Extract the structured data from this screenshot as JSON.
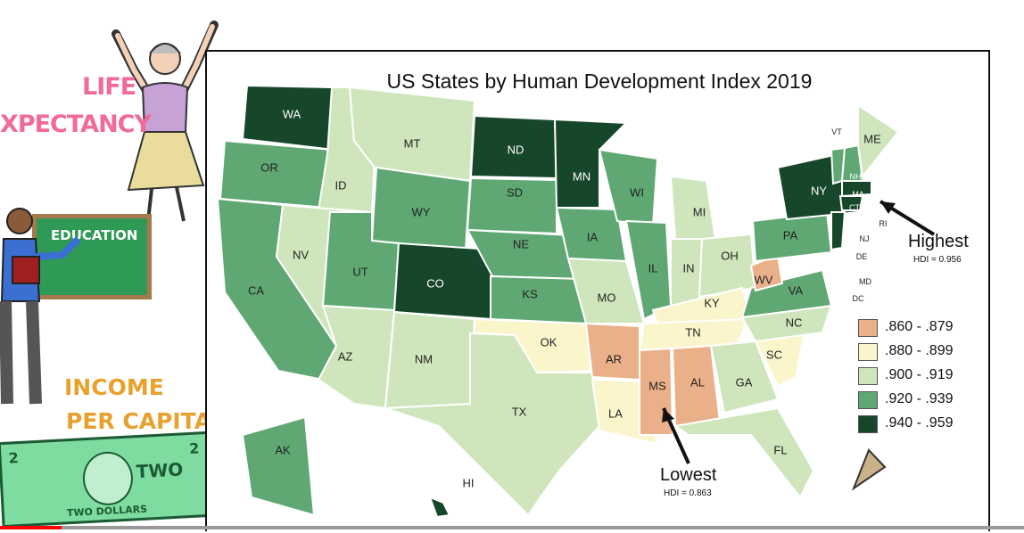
{
  "sidebar": {
    "life_line1": "LIFE",
    "life_line2": "XPECTANCY",
    "education": "EDUCATION",
    "income_line1": "INCOME",
    "income_line2": "PER CAPITA",
    "bill_two": "TWO",
    "bill_dollars": "TWO DOLLARS",
    "bill_corner": "2"
  },
  "map": {
    "title": "US States by Human Development Index 2019",
    "states": {
      "WA": "WA",
      "OR": "OR",
      "CA": "CA",
      "ID": "ID",
      "NV": "NV",
      "MT": "MT",
      "WY": "WY",
      "UT": "UT",
      "AZ": "AZ",
      "CO": "CO",
      "NM": "NM",
      "ND": "ND",
      "SD": "SD",
      "NE": "NE",
      "KS": "KS",
      "OK": "OK",
      "TX": "TX",
      "MN": "MN",
      "IA": "IA",
      "MO": "MO",
      "AR": "AR",
      "LA": "LA",
      "WI": "WI",
      "IL": "IL",
      "MI": "MI",
      "IN": "IN",
      "OH": "OH",
      "KY": "KY",
      "TN": "TN",
      "MS": "MS",
      "AL": "AL",
      "GA": "GA",
      "FL": "FL",
      "SC": "SC",
      "NC": "NC",
      "VA": "VA",
      "WV": "WV",
      "PA": "PA",
      "NY": "NY",
      "VT": "VT",
      "NH": "NH",
      "ME": "ME",
      "MA": "MA",
      "CT": "CT",
      "RI": "RI",
      "NJ": "NJ",
      "DE": "DE",
      "MD": "MD",
      "DC": "DC",
      "AK": "AK",
      "HI": "HI"
    },
    "legend": [
      {
        "label": ".860 - .879",
        "color": "#eab089"
      },
      {
        "label": ".880 - .899",
        "color": "#fbf5cc"
      },
      {
        "label": ".900 - .919",
        "color": "#cfe6bd"
      },
      {
        "label": ".920 - .939",
        "color": "#5fa874"
      },
      {
        "label": ".940 - .959",
        "color": "#17472a"
      }
    ],
    "annotations": {
      "highest_label": "Highest",
      "highest_hdi": "HDI = 0.956",
      "lowest_label": "Lowest",
      "lowest_hdi": "HDI = 0.863"
    }
  },
  "video": {
    "progress": 0.06
  }
}
